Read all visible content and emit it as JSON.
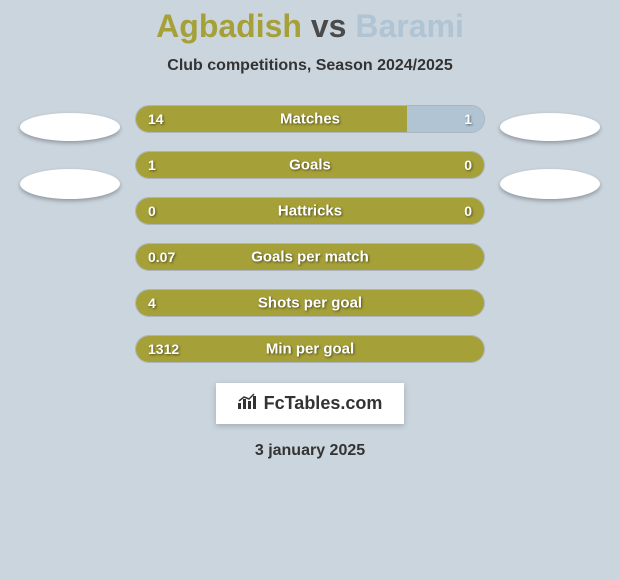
{
  "title": {
    "player1": "Agbadish",
    "vs": "vs",
    "player2": "Barami",
    "player1_color": "#a5a038",
    "player2_color": "#b0c4d4"
  },
  "subtitle": "Club competitions, Season 2024/2025",
  "background_color": "#cbd5de",
  "stats": [
    {
      "label": "Matches",
      "left_value": "14",
      "right_value": "1",
      "left_pct": 78,
      "right_pct": 22,
      "left_color": "#a5a038",
      "right_color": "#b0c4d4"
    },
    {
      "label": "Goals",
      "left_value": "1",
      "right_value": "0",
      "left_pct": 100,
      "right_pct": 0,
      "left_color": "#a5a038",
      "right_color": "#b0c4d4"
    },
    {
      "label": "Hattricks",
      "left_value": "0",
      "right_value": "0",
      "left_pct": 100,
      "right_pct": 0,
      "left_color": "#a5a038",
      "right_color": "#b0c4d4"
    },
    {
      "label": "Goals per match",
      "left_value": "0.07",
      "right_value": "",
      "left_pct": 100,
      "right_pct": 0,
      "left_color": "#a5a038",
      "right_color": "#b0c4d4"
    },
    {
      "label": "Shots per goal",
      "left_value": "4",
      "right_value": "",
      "left_pct": 100,
      "right_pct": 0,
      "left_color": "#a5a038",
      "right_color": "#b0c4d4"
    },
    {
      "label": "Min per goal",
      "left_value": "1312",
      "right_value": "",
      "left_pct": 100,
      "right_pct": 0,
      "left_color": "#a5a038",
      "right_color": "#b0c4d4"
    }
  ],
  "footer": {
    "brand": "FcTables.com",
    "date": "3 january 2025"
  }
}
